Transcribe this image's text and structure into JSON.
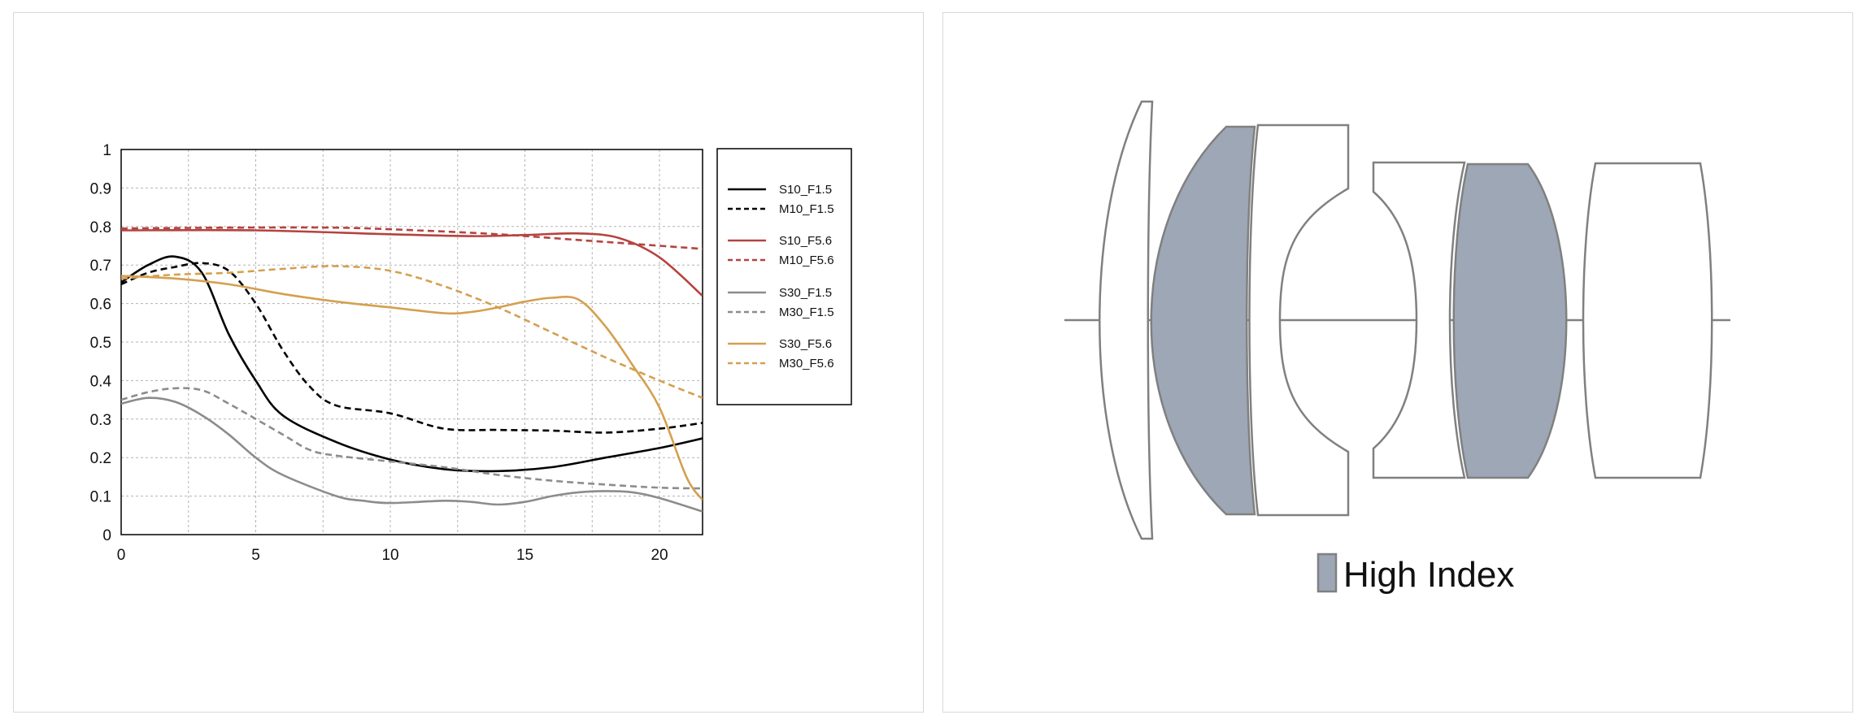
{
  "chart_data": {
    "type": "line",
    "title": "",
    "xlabel": "",
    "ylabel": "",
    "xlim": [
      0,
      21.6
    ],
    "ylim": [
      0,
      1
    ],
    "x_ticks": [
      "0",
      "5",
      "10",
      "15",
      "20"
    ],
    "y_ticks": [
      "0",
      "0.1",
      "0.2",
      "0.3",
      "0.4",
      "0.5",
      "0.6",
      "0.7",
      "0.8",
      "0.9",
      "1"
    ],
    "grid": true,
    "legend_position": "right",
    "series": [
      {
        "name": "S10_F1.5",
        "color": "#000000",
        "dash": "solid",
        "points": [
          [
            0,
            0.655
          ],
          [
            1,
            0.7
          ],
          [
            2,
            0.722
          ],
          [
            3,
            0.68
          ],
          [
            4,
            0.52
          ],
          [
            5,
            0.4
          ],
          [
            6,
            0.31
          ],
          [
            8,
            0.24
          ],
          [
            10,
            0.195
          ],
          [
            12,
            0.17
          ],
          [
            14,
            0.165
          ],
          [
            16,
            0.175
          ],
          [
            18,
            0.2
          ],
          [
            20,
            0.225
          ],
          [
            21.6,
            0.25
          ]
        ]
      },
      {
        "name": "M10_F1.5",
        "color": "#000000",
        "dash": "dashed",
        "points": [
          [
            0,
            0.65
          ],
          [
            1,
            0.68
          ],
          [
            2,
            0.695
          ],
          [
            3,
            0.705
          ],
          [
            4,
            0.685
          ],
          [
            5,
            0.6
          ],
          [
            6,
            0.48
          ],
          [
            7,
            0.385
          ],
          [
            8,
            0.335
          ],
          [
            10,
            0.315
          ],
          [
            12,
            0.275
          ],
          [
            14,
            0.272
          ],
          [
            16,
            0.27
          ],
          [
            18,
            0.265
          ],
          [
            20,
            0.275
          ],
          [
            21.6,
            0.29
          ]
        ]
      },
      {
        "name": "S10_F5.6",
        "color": "#b5433f",
        "dash": "solid",
        "points": [
          [
            0,
            0.79
          ],
          [
            5,
            0.79
          ],
          [
            10,
            0.78
          ],
          [
            13,
            0.775
          ],
          [
            15,
            0.778
          ],
          [
            17,
            0.782
          ],
          [
            18.5,
            0.77
          ],
          [
            20,
            0.72
          ],
          [
            21.6,
            0.62
          ]
        ]
      },
      {
        "name": "M10_F5.6",
        "color": "#b5433f",
        "dash": "dashed",
        "points": [
          [
            0,
            0.795
          ],
          [
            4,
            0.797
          ],
          [
            8,
            0.797
          ],
          [
            11,
            0.79
          ],
          [
            14,
            0.78
          ],
          [
            17,
            0.765
          ],
          [
            19,
            0.755
          ],
          [
            21.6,
            0.742
          ]
        ]
      },
      {
        "name": "S30_F1.5",
        "color": "#8c8c8c",
        "dash": "solid",
        "points": [
          [
            0,
            0.34
          ],
          [
            1,
            0.355
          ],
          [
            2,
            0.345
          ],
          [
            3,
            0.31
          ],
          [
            4,
            0.26
          ],
          [
            5,
            0.2
          ],
          [
            6,
            0.155
          ],
          [
            8,
            0.1
          ],
          [
            9,
            0.088
          ],
          [
            10,
            0.082
          ],
          [
            12,
            0.088
          ],
          [
            13,
            0.085
          ],
          [
            14,
            0.078
          ],
          [
            15,
            0.085
          ],
          [
            16,
            0.1
          ],
          [
            17,
            0.11
          ],
          [
            18,
            0.113
          ],
          [
            19,
            0.11
          ],
          [
            20,
            0.095
          ],
          [
            21.6,
            0.06
          ]
        ]
      },
      {
        "name": "M30_F1.5",
        "color": "#8c8c8c",
        "dash": "dashed",
        "points": [
          [
            0,
            0.35
          ],
          [
            1,
            0.37
          ],
          [
            2,
            0.38
          ],
          [
            3,
            0.375
          ],
          [
            4,
            0.34
          ],
          [
            6,
            0.26
          ],
          [
            7,
            0.22
          ],
          [
            8,
            0.205
          ],
          [
            10,
            0.19
          ],
          [
            12,
            0.175
          ],
          [
            14,
            0.155
          ],
          [
            16,
            0.14
          ],
          [
            18,
            0.13
          ],
          [
            20,
            0.122
          ],
          [
            21.6,
            0.12
          ]
        ]
      },
      {
        "name": "S30_F5.6",
        "color": "#d4a04f",
        "dash": "solid",
        "points": [
          [
            0,
            0.672
          ],
          [
            2,
            0.665
          ],
          [
            4,
            0.65
          ],
          [
            6,
            0.625
          ],
          [
            8,
            0.605
          ],
          [
            10,
            0.59
          ],
          [
            12,
            0.575
          ],
          [
            13,
            0.578
          ],
          [
            14,
            0.59
          ],
          [
            15,
            0.605
          ],
          [
            16,
            0.615
          ],
          [
            17,
            0.61
          ],
          [
            18,
            0.54
          ],
          [
            19,
            0.44
          ],
          [
            20,
            0.33
          ],
          [
            21,
            0.15
          ],
          [
            21.6,
            0.09
          ]
        ]
      },
      {
        "name": "M30_F5.6",
        "color": "#d4a04f",
        "dash": "dashed",
        "points": [
          [
            0,
            0.665
          ],
          [
            2,
            0.675
          ],
          [
            4,
            0.68
          ],
          [
            6,
            0.69
          ],
          [
            8,
            0.697
          ],
          [
            10,
            0.685
          ],
          [
            12,
            0.645
          ],
          [
            14,
            0.59
          ],
          [
            16,
            0.525
          ],
          [
            18,
            0.46
          ],
          [
            20,
            0.4
          ],
          [
            21.6,
            0.355
          ]
        ]
      }
    ]
  },
  "diagram": {
    "legend_label": "High Index",
    "high_index_color": "#9ea7b5",
    "outline_color": "#808080"
  }
}
